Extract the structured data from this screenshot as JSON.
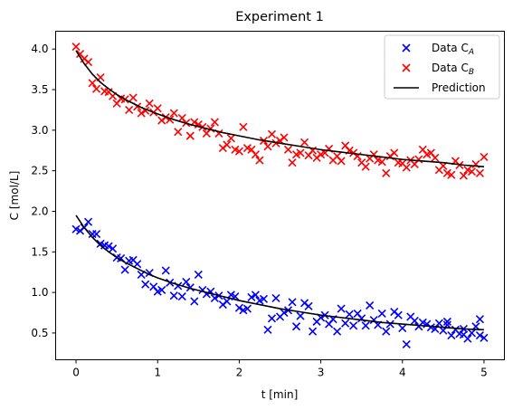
{
  "chart_data": {
    "type": "scatter",
    "title": "Experiment 1",
    "xlabel": "t [min]",
    "ylabel": "C [mol/L]",
    "xlim": [
      -0.25,
      5.25
    ],
    "ylim": [
      0.17,
      4.22
    ],
    "xticks": [
      0,
      1,
      2,
      3,
      4,
      5
    ],
    "yticks": [
      0.5,
      1.0,
      1.5,
      2.0,
      2.5,
      3.0,
      3.5,
      4.0
    ],
    "grid": false,
    "legend_position": "top-right",
    "series": [
      {
        "name": "Data C_A",
        "legend_base": "Data C",
        "legend_sub": "A",
        "marker": "x",
        "color": "#0000ff",
        "x": [
          0.0,
          0.05,
          0.1,
          0.15,
          0.2,
          0.25,
          0.3,
          0.35,
          0.4,
          0.45,
          0.5,
          0.55,
          0.6,
          0.65,
          0.7,
          0.75,
          0.8,
          0.85,
          0.9,
          0.95,
          1.0,
          1.05,
          1.1,
          1.15,
          1.2,
          1.25,
          1.3,
          1.35,
          1.4,
          1.45,
          1.5,
          1.55,
          1.6,
          1.65,
          1.7,
          1.75,
          1.8,
          1.85,
          1.9,
          1.95,
          2.0,
          2.05,
          2.1,
          2.15,
          2.2,
          2.25,
          2.3,
          2.35,
          2.4,
          2.45,
          2.5,
          2.55,
          2.6,
          2.65,
          2.7,
          2.75,
          2.8,
          2.85,
          2.9,
          2.95,
          3.0,
          3.05,
          3.1,
          3.15,
          3.2,
          3.25,
          3.3,
          3.35,
          3.4,
          3.45,
          3.5,
          3.55,
          3.6,
          3.65,
          3.7,
          3.75,
          3.8,
          3.85,
          3.9,
          3.95,
          4.0,
          4.05,
          4.1,
          4.15,
          4.2,
          4.25,
          4.3,
          4.35,
          4.4,
          4.45,
          4.5,
          4.55,
          4.6,
          4.65,
          4.7,
          4.75,
          4.8,
          4.85,
          4.9,
          4.95,
          5.0
        ],
        "y": [
          1.78,
          1.76,
          1.8,
          1.87,
          1.72,
          1.72,
          1.6,
          1.58,
          1.57,
          1.54,
          1.43,
          1.42,
          1.28,
          1.39,
          1.4,
          1.35,
          1.22,
          1.1,
          1.24,
          1.07,
          1.01,
          1.03,
          1.27,
          1.12,
          0.96,
          1.08,
          0.95,
          1.13,
          1.06,
          0.89,
          1.22,
          1.03,
          0.98,
          1.01,
          0.93,
          0.96,
          0.85,
          0.89,
          0.97,
          0.95,
          0.81,
          0.78,
          0.8,
          0.94,
          0.97,
          0.9,
          0.92,
          0.54,
          0.68,
          0.93,
          0.7,
          0.75,
          0.78,
          0.88,
          0.58,
          0.71,
          0.87,
          0.83,
          0.52,
          0.64,
          0.69,
          0.72,
          0.61,
          0.67,
          0.52,
          0.8,
          0.62,
          0.73,
          0.59,
          0.74,
          0.68,
          0.59,
          0.84,
          0.66,
          0.6,
          0.74,
          0.52,
          0.61,
          0.76,
          0.72,
          0.56,
          0.36,
          0.7,
          0.65,
          0.58,
          0.63,
          0.61,
          0.57,
          0.55,
          0.62,
          0.53,
          0.6,
          0.47,
          0.54,
          0.49,
          0.55,
          0.43,
          0.5,
          0.58,
          0.67,
          0.44
        ],
        "extra_x": [
          4.55,
          4.75,
          4.95
        ],
        "extra_y": [
          0.64,
          0.48,
          0.47
        ]
      },
      {
        "name": "Data C_B",
        "legend_base": "Data C",
        "legend_sub": "B",
        "marker": "x",
        "color": "#ff0000",
        "x": [
          0.0,
          0.05,
          0.1,
          0.15,
          0.2,
          0.25,
          0.3,
          0.35,
          0.4,
          0.45,
          0.5,
          0.55,
          0.6,
          0.65,
          0.7,
          0.75,
          0.8,
          0.85,
          0.9,
          0.95,
          1.0,
          1.05,
          1.1,
          1.15,
          1.2,
          1.25,
          1.3,
          1.35,
          1.4,
          1.45,
          1.5,
          1.55,
          1.6,
          1.65,
          1.7,
          1.75,
          1.8,
          1.85,
          1.9,
          1.95,
          2.0,
          2.05,
          2.1,
          2.15,
          2.2,
          2.25,
          2.3,
          2.35,
          2.4,
          2.45,
          2.5,
          2.55,
          2.6,
          2.65,
          2.7,
          2.75,
          2.8,
          2.85,
          2.9,
          2.95,
          3.0,
          3.05,
          3.1,
          3.15,
          3.2,
          3.25,
          3.3,
          3.35,
          3.4,
          3.45,
          3.5,
          3.55,
          3.6,
          3.65,
          3.7,
          3.75,
          3.8,
          3.85,
          3.9,
          3.95,
          4.0,
          4.05,
          4.1,
          4.15,
          4.2,
          4.25,
          4.3,
          4.35,
          4.4,
          4.45,
          4.5,
          4.55,
          4.6,
          4.65,
          4.7,
          4.75,
          4.8,
          4.85,
          4.9,
          4.95,
          5.0
        ],
        "y": [
          4.03,
          3.94,
          3.88,
          3.84,
          3.58,
          3.51,
          3.65,
          3.48,
          3.47,
          3.42,
          3.33,
          3.39,
          3.38,
          3.25,
          3.4,
          3.29,
          3.21,
          3.24,
          3.33,
          3.22,
          3.27,
          3.12,
          3.16,
          3.13,
          3.21,
          2.98,
          3.15,
          3.09,
          2.93,
          3.1,
          3.07,
          3.04,
          2.96,
          3.02,
          3.1,
          2.96,
          2.78,
          2.82,
          2.9,
          2.76,
          2.74,
          3.04,
          2.78,
          2.76,
          2.7,
          2.63,
          2.87,
          2.8,
          2.95,
          2.84,
          2.87,
          2.91,
          2.76,
          2.6,
          2.7,
          2.72,
          2.85,
          2.69,
          2.75,
          2.66,
          2.7,
          2.72,
          2.77,
          2.63,
          2.68,
          2.62,
          2.81,
          2.75,
          2.72,
          2.68,
          2.6,
          2.55,
          2.65,
          2.7,
          2.63,
          2.61,
          2.47,
          2.68,
          2.72,
          2.6,
          2.59,
          2.54,
          2.63,
          2.58,
          2.64,
          2.76,
          2.7,
          2.72,
          2.66,
          2.51,
          2.56,
          2.47,
          2.45,
          2.62,
          2.57,
          2.44,
          2.51,
          2.49,
          2.58,
          2.47,
          2.67
        ]
      },
      {
        "name": "Prediction",
        "marker": "line",
        "color": "#000000",
        "x": [
          0.0,
          0.1,
          0.2,
          0.3,
          0.4,
          0.5,
          0.6,
          0.7,
          0.8,
          0.9,
          1.0,
          1.2,
          1.4,
          1.6,
          1.8,
          2.0,
          2.25,
          2.5,
          2.75,
          3.0,
          3.25,
          3.5,
          3.75,
          4.0,
          4.25,
          4.5,
          4.75,
          5.0
        ],
        "yA": [
          1.95,
          1.8,
          1.68,
          1.58,
          1.5,
          1.43,
          1.37,
          1.32,
          1.27,
          1.22,
          1.18,
          1.11,
          1.05,
          1.0,
          0.95,
          0.9,
          0.85,
          0.8,
          0.76,
          0.72,
          0.69,
          0.66,
          0.63,
          0.61,
          0.59,
          0.57,
          0.55,
          0.54
        ],
        "yB": [
          3.98,
          3.82,
          3.69,
          3.59,
          3.51,
          3.44,
          3.38,
          3.33,
          3.28,
          3.24,
          3.2,
          3.13,
          3.07,
          3.02,
          2.97,
          2.93,
          2.88,
          2.84,
          2.8,
          2.76,
          2.73,
          2.7,
          2.67,
          2.64,
          2.62,
          2.6,
          2.57,
          2.55
        ]
      }
    ]
  }
}
